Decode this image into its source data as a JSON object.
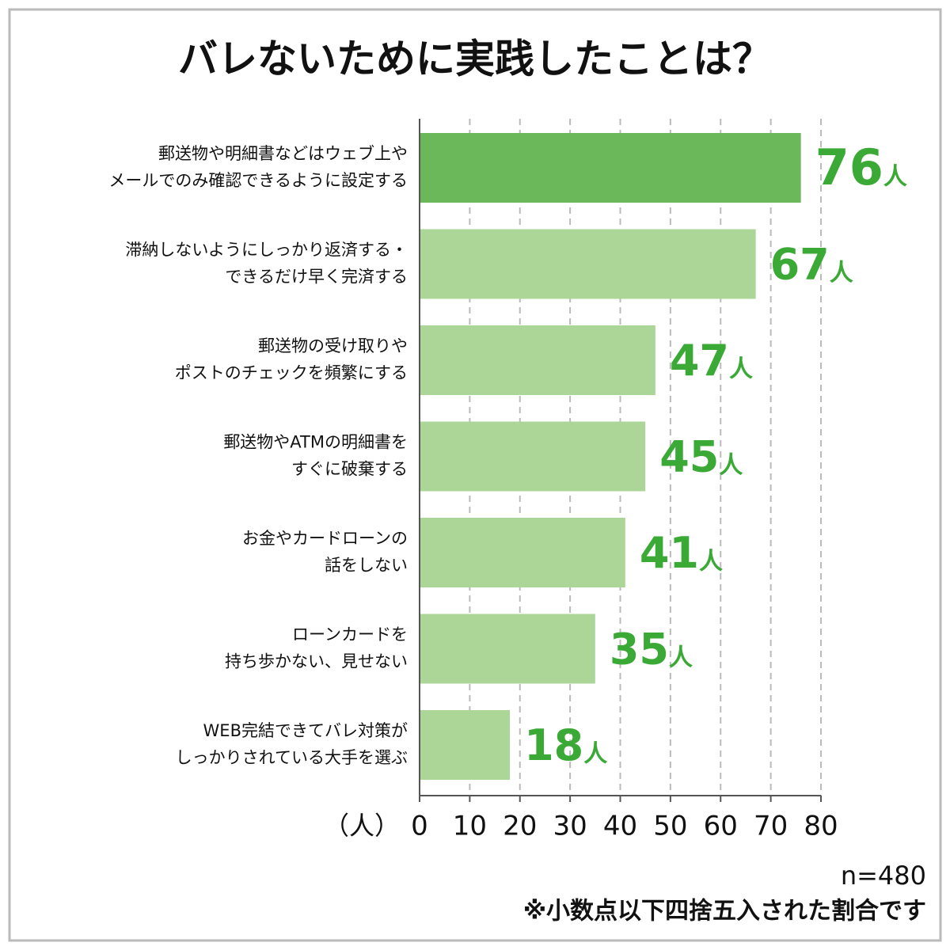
{
  "chart_data": {
    "type": "hbar",
    "title": "バレないために実践したことは？",
    "categories": [
      [
        "郵送物や明細書などはウェブ上や",
        "メールでのみ確認できるように設定する"
      ],
      [
        "滞納しないようにしっかり返済する・",
        "できるだけ早く完済する"
      ],
      [
        "郵送物の受け取りや",
        "ポストのチェックを頻繁にする"
      ],
      [
        "郵送物やATMの明細書を",
        "すぐに破棄する"
      ],
      [
        "お金やカードローンの",
        "話をしない"
      ],
      [
        "ローンカードを",
        "持ち歩かない、見せない"
      ],
      [
        "WEB完結できてバレ対策が",
        "しっかりされている大手を選ぶ"
      ]
    ],
    "values": [
      76,
      67,
      47,
      45,
      41,
      35,
      18
    ],
    "value_unit": "人",
    "colors": [
      "#6bb85b",
      "#acd598",
      "#acd598",
      "#acd598",
      "#acd598",
      "#acd598",
      "#acd598"
    ],
    "label_color": "#3aa935",
    "x_axis_label": "（人）",
    "xlim": [
      0,
      80
    ],
    "xticks": [
      0,
      10,
      20,
      30,
      40,
      50,
      60,
      70,
      80
    ],
    "grid": true,
    "notes": [
      "n=480",
      "※小数点以下四捨五入された割合です"
    ]
  }
}
